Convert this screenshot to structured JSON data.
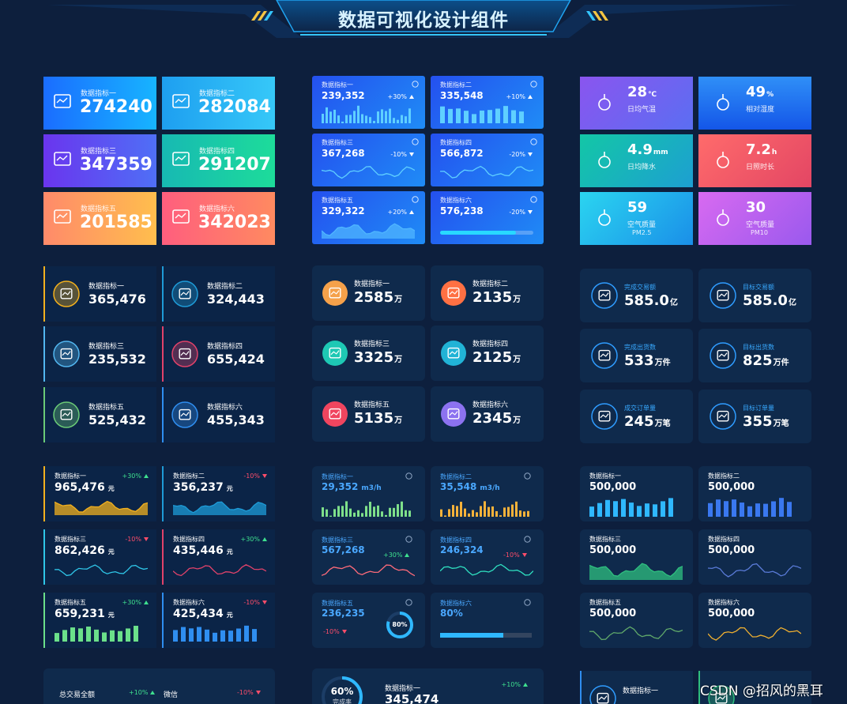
{
  "header": {
    "title": "数据可视化设计组件"
  },
  "gradient_cards": [
    {
      "label": "数据指标一",
      "value": "274240"
    },
    {
      "label": "数据指标二",
      "value": "282084"
    },
    {
      "label": "数据指标三",
      "value": "347359"
    },
    {
      "label": "数据指标四",
      "value": "291207"
    },
    {
      "label": "数据指标五",
      "value": "201585"
    },
    {
      "label": "数据指标六",
      "value": "342023"
    }
  ],
  "trend_cards": [
    {
      "label": "数据指标一",
      "value": "239,352",
      "change": "+30%"
    },
    {
      "label": "数据指标二",
      "value": "335,548",
      "change": "+10%"
    },
    {
      "label": "数据指标三",
      "value": "367,268",
      "change": "-10%"
    },
    {
      "label": "数据指标四",
      "value": "566,872",
      "change": "-20%"
    },
    {
      "label": "数据指标五",
      "value": "329,322",
      "change": "+20%"
    },
    {
      "label": "数据指标六",
      "value": "576,238",
      "change": "-20%"
    }
  ],
  "weather_cards": [
    {
      "value": "28",
      "unit": "℃",
      "label": "日均气温"
    },
    {
      "value": "49",
      "unit": "%",
      "label": "相对湿度"
    },
    {
      "value": "4.9",
      "unit": "mm",
      "label": "日均降水"
    },
    {
      "value": "7.2",
      "unit": "h",
      "label": "日照时长"
    },
    {
      "value": "59",
      "label": "空气质量",
      "sub": "PM2.5"
    },
    {
      "value": "30",
      "label": "空气质量",
      "sub": "PM10"
    }
  ],
  "icon_cards": [
    {
      "label": "数据指标一",
      "value": "365,476"
    },
    {
      "label": "数据指标二",
      "value": "324,443"
    },
    {
      "label": "数据指标三",
      "value": "235,532"
    },
    {
      "label": "数据指标四",
      "value": "655,424"
    },
    {
      "label": "数据指标五",
      "value": "525,432"
    },
    {
      "label": "数据指标六",
      "value": "455,343"
    }
  ],
  "wan_cards": [
    {
      "label": "数据指标一",
      "value": "2585",
      "unit": "万"
    },
    {
      "label": "数据指标二",
      "value": "2135",
      "unit": "万"
    },
    {
      "label": "数据指标三",
      "value": "3325",
      "unit": "万"
    },
    {
      "label": "数据指标四",
      "value": "2125",
      "unit": "万"
    },
    {
      "label": "数据指标五",
      "value": "5135",
      "unit": "万"
    },
    {
      "label": "数据指标六",
      "value": "2345",
      "unit": "万"
    }
  ],
  "target_cards": [
    {
      "label": "完成交易额",
      "value": "585.0",
      "unit": "亿"
    },
    {
      "label": "目标交易额",
      "value": "585.0",
      "unit": "亿"
    },
    {
      "label": "完成出货数",
      "value": "533",
      "unit": "万件"
    },
    {
      "label": "目标出货数",
      "value": "825",
      "unit": "万件"
    },
    {
      "label": "成交订单量",
      "value": "245",
      "unit": "万笔"
    },
    {
      "label": "目标订单量",
      "value": "355",
      "unit": "万笔"
    }
  ],
  "line_cards": [
    {
      "label": "数据指标一",
      "value": "965,476",
      "unit": "元",
      "change": "+30%"
    },
    {
      "label": "数据指标二",
      "value": "356,237",
      "unit": "元",
      "change": "-10%"
    },
    {
      "label": "数据指标三",
      "value": "862,426",
      "unit": "元",
      "change": "-10%"
    },
    {
      "label": "数据指标四",
      "value": "435,446",
      "unit": "元",
      "change": "+30%"
    },
    {
      "label": "数据指标五",
      "value": "659,231",
      "unit": "元",
      "change": "+30%"
    },
    {
      "label": "数据指标六",
      "value": "425,434",
      "unit": "元",
      "change": "-10%"
    }
  ],
  "flow_cards": [
    {
      "label": "数据指标一",
      "value": "29,352",
      "unit": "m3/h"
    },
    {
      "label": "数据指标二",
      "value": "35,548",
      "unit": "m3/h"
    },
    {
      "label": "数据指标三",
      "value": "567,268",
      "change": "+30%"
    },
    {
      "label": "数据指标四",
      "value": "246,324",
      "change": "-10%"
    },
    {
      "label": "数据指标五",
      "value": "236,235",
      "change": "-10%",
      "ring": "80%"
    },
    {
      "label": "数据指标六",
      "value": "80%"
    }
  ],
  "plain_cards": [
    {
      "label": "数据指标一",
      "value": "500,000"
    },
    {
      "label": "数据指标二",
      "value": "500,000"
    },
    {
      "label": "数据指标三",
      "value": "500,000"
    },
    {
      "label": "数据指标四",
      "value": "500,000"
    },
    {
      "label": "数据指标五",
      "value": "500,000"
    },
    {
      "label": "数据指标六",
      "value": "500,000"
    }
  ],
  "bottom": {
    "total": {
      "label": "总交易全额",
      "change": "+10%"
    },
    "wechat": {
      "label": "微信",
      "change": "-10%"
    },
    "rate": {
      "value": "60%",
      "label": "完成率"
    },
    "metric": {
      "label": "数据指标一",
      "value": "345,474",
      "change": "+10%"
    },
    "last": {
      "label": "数据指标一"
    }
  },
  "watermark": "CSDN @招风的黑耳"
}
